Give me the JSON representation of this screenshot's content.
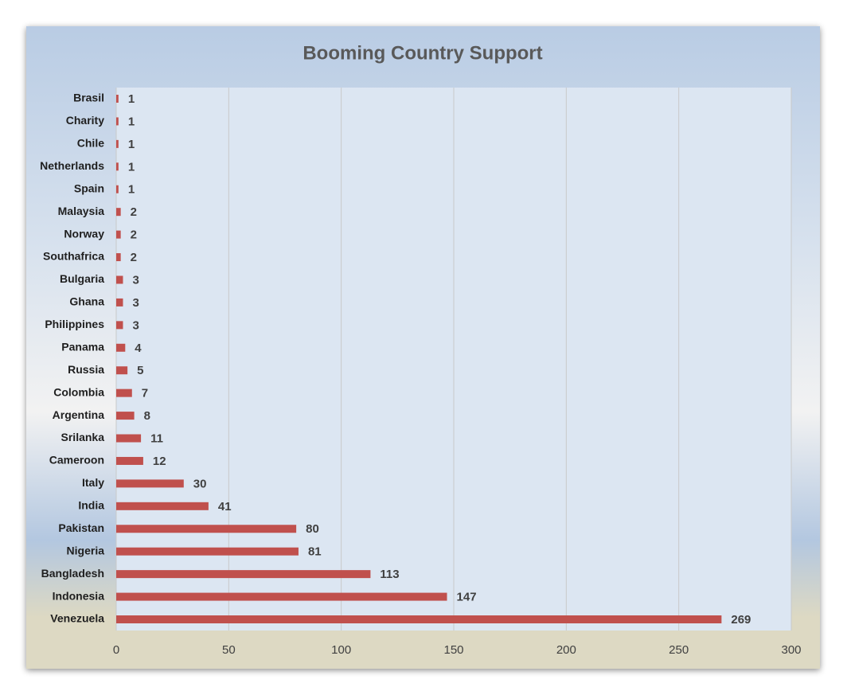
{
  "chart_data": {
    "type": "bar",
    "title": "Booming Country Support",
    "categories": [
      "Brasil",
      "Charity",
      "Chile",
      "Netherlands",
      "Spain",
      "Malaysia",
      "Norway",
      "Southafrica",
      "Bulgaria",
      "Ghana",
      "Philippines",
      "Panama",
      "Russia",
      "Colombia",
      "Argentina",
      "Srilanka",
      "Cameroon",
      "Italy",
      "India",
      "Pakistan",
      "Nigeria",
      "Bangladesh",
      "Indonesia",
      "Venezuela"
    ],
    "values": [
      1,
      1,
      1,
      1,
      1,
      2,
      2,
      2,
      3,
      3,
      3,
      4,
      5,
      7,
      8,
      11,
      12,
      30,
      41,
      80,
      81,
      113,
      147,
      269
    ],
    "color": "#c0504d",
    "xlim": [
      0,
      300
    ],
    "xticks": [
      0,
      50,
      100,
      150,
      200,
      250,
      300
    ],
    "grid": true
  }
}
